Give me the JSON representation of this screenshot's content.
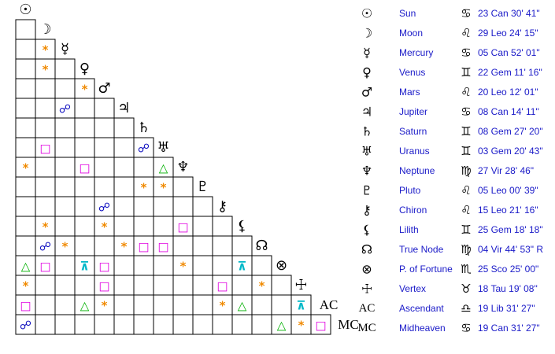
{
  "bodies": [
    {
      "glyph": "☉",
      "name": "Sun",
      "sign": "♋",
      "position": "23 Can 30' 41\""
    },
    {
      "glyph": "☽",
      "name": "Moon",
      "sign": "♌",
      "position": "29 Leo 24' 15\""
    },
    {
      "glyph": "☿",
      "name": "Mercury",
      "sign": "♋",
      "position": "05 Can 52' 01\""
    },
    {
      "glyph": "♀",
      "name": "Venus",
      "sign": "♊",
      "position": "22 Gem 11' 16\""
    },
    {
      "glyph": "♂",
      "name": "Mars",
      "sign": "♌",
      "position": "20 Leo 12' 01\""
    },
    {
      "glyph": "♃",
      "name": "Jupiter",
      "sign": "♋",
      "position": "08 Can 14' 11\""
    },
    {
      "glyph": "♄",
      "name": "Saturn",
      "sign": "♊",
      "position": "08 Gem 27' 20\""
    },
    {
      "glyph": "♅",
      "name": "Uranus",
      "sign": "♊",
      "position": "03 Gem 20' 43\""
    },
    {
      "glyph": "♆",
      "name": "Neptune",
      "sign": "♍",
      "position": "27 Vir 28' 46\""
    },
    {
      "glyph": "♇",
      "name": "Pluto",
      "sign": "♌",
      "position": "05 Leo 00' 39\""
    },
    {
      "glyph": "⚷",
      "name": "Chiron",
      "sign": "♌",
      "position": "15 Leo 21' 16\""
    },
    {
      "glyph": "⚸",
      "name": "Lilith",
      "sign": "♊",
      "position": "25 Gem 18' 18\""
    },
    {
      "glyph": "☊",
      "name": "True Node",
      "sign": "♍",
      "position": "04 Vir 44' 53\" R"
    },
    {
      "glyph": "⊗",
      "name": "P. of Fortune",
      "sign": "♏",
      "position": "25 Sco 25' 00\""
    },
    {
      "glyph": "☩",
      "name": "Vertex",
      "sign": "♉",
      "position": "18 Tau 19' 08\""
    },
    {
      "glyph": "AC",
      "name": "Ascendant",
      "sign": "♎",
      "position": "19 Lib 31' 27\""
    },
    {
      "glyph": "MC",
      "name": "Midheaven",
      "sign": "♋",
      "position": "19 Can 31' 27\""
    }
  ],
  "aspect_colors": {
    "*": "#f08a00",
    "□": "#e000e0",
    "△": "#00b000",
    "☍": "#1010c0",
    "⊼": "#00b8c8"
  },
  "grid": {
    "rows": [
      [],
      [
        null
      ],
      [
        null,
        "*"
      ],
      [
        null,
        "*",
        null
      ],
      [
        null,
        null,
        null,
        "*"
      ],
      [
        null,
        null,
        "☍",
        null,
        null
      ],
      [
        null,
        null,
        null,
        null,
        null,
        null
      ],
      [
        null,
        "□",
        null,
        null,
        null,
        null,
        "☍"
      ],
      [
        "*",
        null,
        null,
        "□",
        null,
        null,
        null,
        "△"
      ],
      [
        null,
        null,
        null,
        null,
        null,
        null,
        "*",
        "*",
        null
      ],
      [
        null,
        null,
        null,
        null,
        "☍",
        null,
        null,
        null,
        null,
        null
      ],
      [
        null,
        "*",
        null,
        null,
        "*",
        null,
        null,
        null,
        "□",
        null,
        null
      ],
      [
        null,
        "☍",
        "*",
        null,
        null,
        "*",
        "□",
        "□",
        null,
        null,
        null,
        null
      ],
      [
        "△",
        "□",
        null,
        "⊼",
        "□",
        null,
        null,
        null,
        "*",
        null,
        null,
        "⊼",
        null
      ],
      [
        "*",
        null,
        null,
        null,
        "□",
        null,
        null,
        null,
        null,
        null,
        "□",
        null,
        "*",
        null
      ],
      [
        "□",
        null,
        null,
        "△",
        "*",
        null,
        null,
        null,
        null,
        null,
        "*",
        "△",
        null,
        null,
        "⊼"
      ],
      [
        "☍",
        null,
        null,
        null,
        null,
        null,
        null,
        null,
        null,
        null,
        null,
        null,
        null,
        "△",
        "*",
        "□"
      ]
    ]
  }
}
